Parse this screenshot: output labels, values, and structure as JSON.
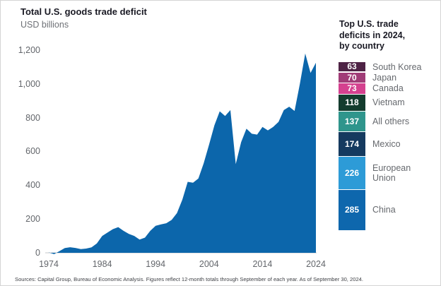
{
  "header": {
    "title": "Total U.S. goods trade deficit",
    "subtitle": "USD billions"
  },
  "footer": {
    "source_note": "Sources: Capital Group, Bureau of Economic Analysis. Figures reflect 12-month totals through September of each year. As of September 30, 2024."
  },
  "colors": {
    "area_fill": "#0c66ab",
    "baseline": "#c6c7ca",
    "title_text": "#1a1a24",
    "axis_text": "#63666b",
    "label_text": "#66696e"
  },
  "chart_data": [
    {
      "type": "area",
      "title": "Total U.S. goods trade deficit",
      "ylabel": "USD billions",
      "xlabel": "",
      "grid": false,
      "legend_position": "none",
      "series_color": "#0c66ab",
      "xlim": [
        1974,
        2024
      ],
      "ylim": [
        0,
        1200
      ],
      "x_ticks": [
        1974,
        1984,
        1994,
        2004,
        2014,
        2024
      ],
      "y_ticks": [
        0,
        200,
        400,
        600,
        800,
        1000,
        1200
      ],
      "y_tick_labels": [
        "0",
        "200",
        "400",
        "600",
        "800",
        "1,000",
        "1,200"
      ],
      "x": [
        1974,
        1975,
        1976,
        1977,
        1978,
        1979,
        1980,
        1981,
        1982,
        1983,
        1984,
        1985,
        1986,
        1987,
        1988,
        1989,
        1990,
        1991,
        1992,
        1993,
        1994,
        1995,
        1996,
        1997,
        1998,
        1999,
        2000,
        2001,
        2002,
        2003,
        2004,
        2005,
        2006,
        2007,
        2008,
        2009,
        2010,
        2011,
        2012,
        2013,
        2014,
        2015,
        2016,
        2017,
        2018,
        2019,
        2020,
        2021,
        2022,
        2023,
        2024
      ],
      "values": [
        2,
        -8,
        10,
        28,
        33,
        29,
        22,
        25,
        32,
        55,
        100,
        120,
        140,
        152,
        130,
        112,
        100,
        78,
        90,
        130,
        160,
        168,
        175,
        195,
        235,
        315,
        420,
        415,
        440,
        530,
        640,
        755,
        838,
        810,
        845,
        525,
        655,
        735,
        705,
        700,
        745,
        725,
        745,
        775,
        845,
        865,
        840,
        1000,
        1180,
        1065,
        1125
      ]
    },
    {
      "type": "bar",
      "stacked": true,
      "title": "Top U.S. trade deficits in 2024, by country",
      "title_display": "Top U.S. trade\ndeficits in 2024,\nby country",
      "unit": "USD billions",
      "categories": [
        "South Korea",
        "Japan",
        "Canada",
        "Vietnam",
        "All others",
        "Mexico",
        "European Union",
        "China"
      ],
      "values": [
        63,
        70,
        73,
        118,
        137,
        174,
        226,
        285
      ],
      "items": [
        {
          "label": "South Korea",
          "value": 63,
          "color": "#4e2345"
        },
        {
          "label": "Japan",
          "value": 70,
          "color": "#a03c77"
        },
        {
          "label": "Canada",
          "value": 73,
          "color": "#d4418f"
        },
        {
          "label": "Vietnam",
          "value": 118,
          "color": "#133c2e"
        },
        {
          "label": "All others",
          "value": 137,
          "color": "#2f958c"
        },
        {
          "label": "Mexico",
          "value": 174,
          "color": "#153a5f"
        },
        {
          "label": "European Union",
          "value": 226,
          "color": "#2d9bd7"
        },
        {
          "label": "China",
          "value": 285,
          "color": "#0e67ad"
        }
      ]
    }
  ]
}
